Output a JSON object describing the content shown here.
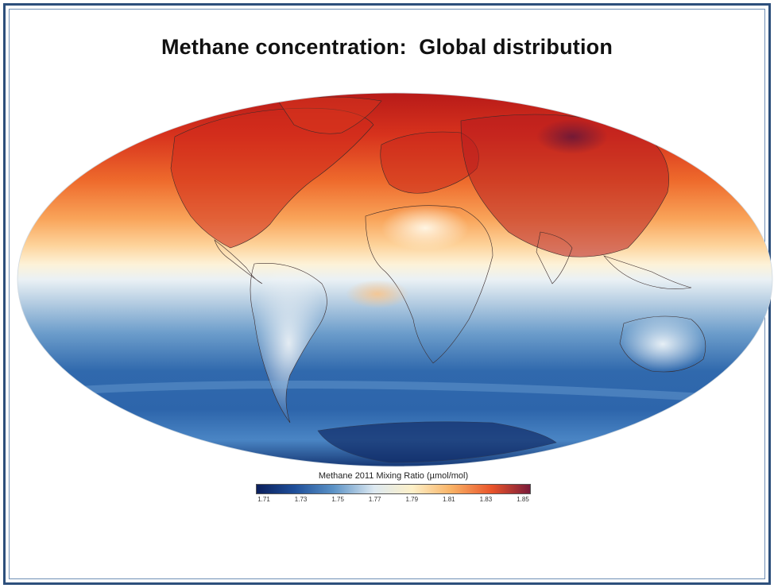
{
  "title": "Methane concentration:  Global distribution",
  "legend": {
    "title": "Methane 2011 Mixing Ratio (µmol/mol)",
    "ticks": [
      "1.71",
      "1.73",
      "1.75",
      "1.77",
      "1.79",
      "1.81",
      "1.83",
      "1.85"
    ],
    "min": 1.71,
    "max": 1.85,
    "colors": [
      "#0b1f5c",
      "#1f4f9a",
      "#5b92c6",
      "#dde9f1",
      "#fdf0c8",
      "#f9b366",
      "#e9542a",
      "#7a1a3a"
    ]
  },
  "map": {
    "projection": "mollweide",
    "bands": [
      {
        "lat": "90N",
        "color": "#c81e1e"
      },
      {
        "lat": "60N",
        "color": "#e3421f"
      },
      {
        "lat": "40N",
        "color": "#f27a32"
      },
      {
        "lat": "20N",
        "color": "#fbbd72"
      },
      {
        "lat": "10N",
        "color": "#fde8c1"
      },
      {
        "lat": "0",
        "color": "#e6eef4"
      },
      {
        "lat": "10S",
        "color": "#b7cfe3"
      },
      {
        "lat": "25S",
        "color": "#5f95c6"
      },
      {
        "lat": "45S",
        "color": "#2f68ac"
      },
      {
        "lat": "65S",
        "color": "#3f7fc0"
      },
      {
        "lat": "90S",
        "color": "#12306c"
      }
    ]
  }
}
